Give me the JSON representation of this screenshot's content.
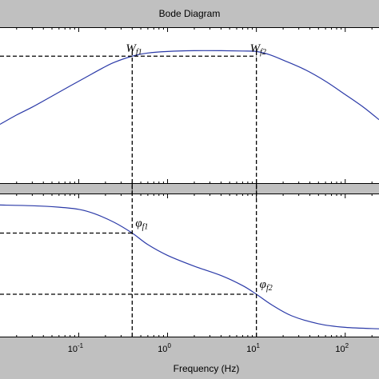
{
  "chart_data": {
    "type": "line",
    "title": "Bode Diagram",
    "xlabel": "Frequency  (Hz)",
    "x_scale": "log",
    "xlim": [
      0.013,
      240
    ],
    "xticks": [
      {
        "base": "10",
        "exp": "-1",
        "value": 0.1
      },
      {
        "base": "10",
        "exp": "0",
        "value": 1
      },
      {
        "base": "10",
        "exp": "1",
        "value": 10
      },
      {
        "base": "10",
        "exp": "2",
        "value": 100
      }
    ],
    "grid": false,
    "markers": [
      {
        "name_main": "W",
        "name_sub": "f1",
        "frequency": 0.4
      },
      {
        "name_main": "W",
        "name_sub": "f2",
        "frequency": 10
      }
    ],
    "phase_markers": [
      {
        "name_main": "φ",
        "name_sub": "f1",
        "frequency": 0.4
      },
      {
        "name_main": "φ",
        "name_sub": "f2",
        "frequency": 10
      }
    ],
    "panels": [
      {
        "name": "magnitude",
        "ylim": [
          0,
          1
        ],
        "series": [
          {
            "points": [
              [
                0.013,
                0.38
              ],
              [
                0.02,
                0.44
              ],
              [
                0.03,
                0.49
              ],
              [
                0.05,
                0.56
              ],
              [
                0.08,
                0.625
              ],
              [
                0.12,
                0.68
              ],
              [
                0.18,
                0.735
              ],
              [
                0.25,
                0.775
              ],
              [
                0.4,
                0.815
              ],
              [
                0.6,
                0.835
              ],
              [
                1,
                0.845
              ],
              [
                2,
                0.85
              ],
              [
                4,
                0.85
              ],
              [
                7,
                0.848
              ],
              [
                10,
                0.845
              ],
              [
                14,
                0.825
              ],
              [
                20,
                0.79
              ],
              [
                35,
                0.73
              ],
              [
                60,
                0.655
              ],
              [
                100,
                0.57
              ],
              [
                160,
                0.49
              ],
              [
                240,
                0.41
              ]
            ]
          }
        ]
      },
      {
        "name": "phase",
        "ylim": [
          0,
          1
        ],
        "series": [
          {
            "points": [
              [
                0.013,
                0.92
              ],
              [
                0.03,
                0.915
              ],
              [
                0.06,
                0.905
              ],
              [
                0.1,
                0.89
              ],
              [
                0.15,
                0.86
              ],
              [
                0.25,
                0.8
              ],
              [
                0.4,
                0.725
              ],
              [
                0.6,
                0.645
              ],
              [
                1,
                0.57
              ],
              [
                2,
                0.495
              ],
              [
                4,
                0.43
              ],
              [
                7,
                0.36
              ],
              [
                10,
                0.3
              ],
              [
                15,
                0.225
              ],
              [
                25,
                0.15
              ],
              [
                50,
                0.095
              ],
              [
                100,
                0.07
              ],
              [
                240,
                0.06
              ]
            ]
          }
        ]
      }
    ]
  }
}
